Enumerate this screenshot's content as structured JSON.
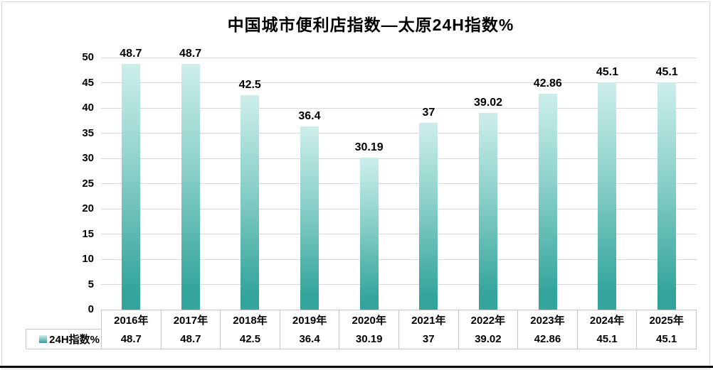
{
  "title": "中国城市便利店指数—太原24H指数%",
  "chart_data": {
    "type": "bar",
    "title": "中国城市便利店指数—太原24H指数%",
    "categories": [
      "2016年",
      "2017年",
      "2018年",
      "2019年",
      "2020年",
      "2021年",
      "2022年",
      "2023年",
      "2024年",
      "2025年"
    ],
    "series": [
      {
        "name": "24H指数%",
        "values": [
          48.7,
          48.7,
          42.5,
          36.4,
          30.19,
          37,
          39.02,
          42.86,
          45.1,
          45.1
        ]
      }
    ],
    "data_labels": [
      "48.7",
      "48.7",
      "42.5",
      "36.4",
      "30.19",
      "37",
      "39.02",
      "42.86",
      "45.1",
      "45.1"
    ],
    "xlabel": "",
    "ylabel": "",
    "ylim": [
      0,
      50
    ],
    "y_ticks": [
      0,
      5,
      10,
      15,
      20,
      25,
      30,
      35,
      40,
      45,
      50
    ],
    "grid": true,
    "legend_position": "data-table-left",
    "has_data_table": true
  },
  "colors": {
    "bar_gradient_top": "#cdeeeb",
    "bar_gradient_mid": "#8fd2cb",
    "bar_gradient_bottom": "#34a59c",
    "gridline": "#d9d9d9",
    "table_border": "#c6c6c6",
    "text": "#000000",
    "background": "#ffffff",
    "bottom_rule": "#000000"
  }
}
